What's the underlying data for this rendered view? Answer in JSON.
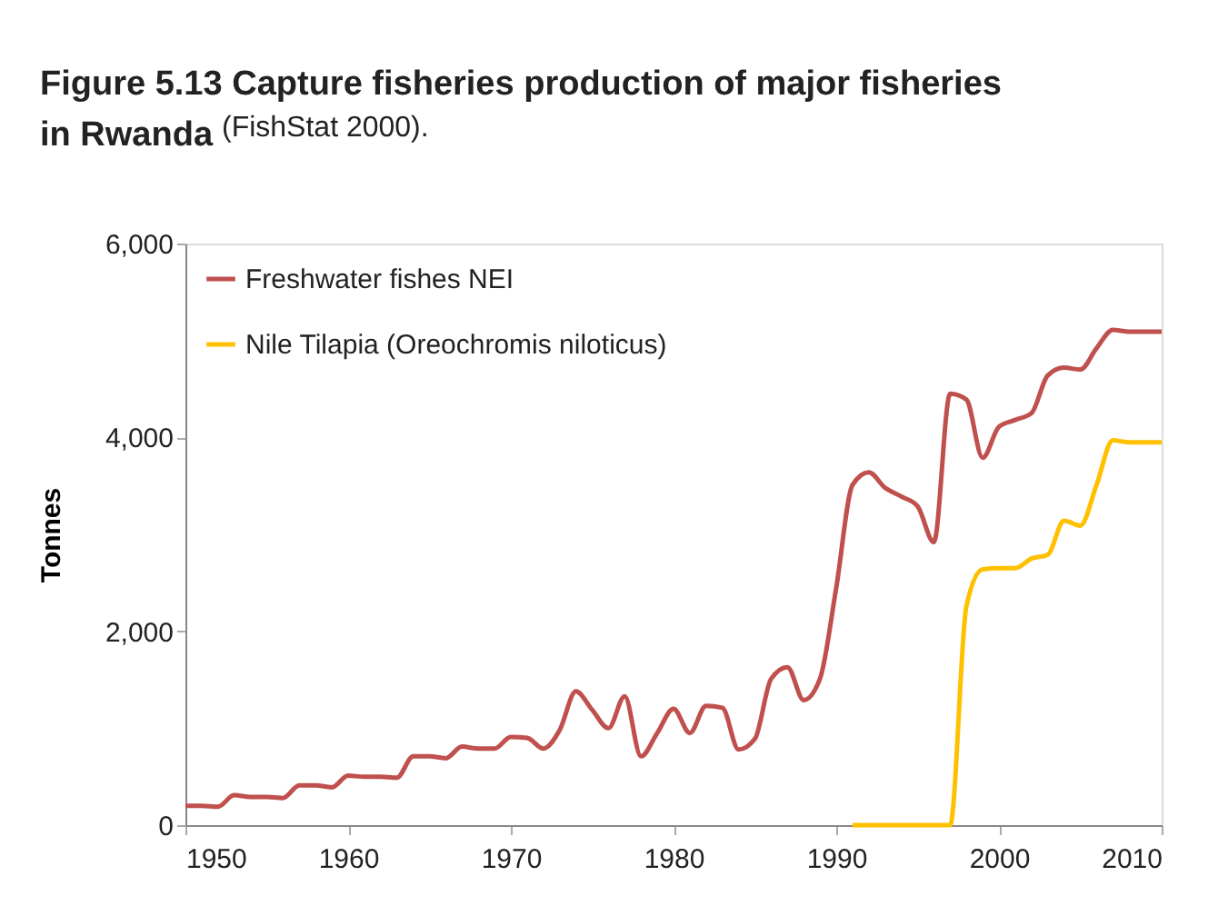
{
  "chart_data": {
    "type": "line",
    "title": "Figure 5.13 Capture fisheries production of major fisheries in Rwanda",
    "annotations": [
      "(FishStat 2000)."
    ],
    "ylabel": "Tonnes",
    "x": [
      1950,
      1951,
      1952,
      1953,
      1954,
      1955,
      1956,
      1957,
      1958,
      1959,
      1960,
      1961,
      1962,
      1963,
      1964,
      1965,
      1966,
      1967,
      1968,
      1969,
      1970,
      1971,
      1972,
      1973,
      1974,
      1975,
      1976,
      1977,
      1978,
      1979,
      1980,
      1981,
      1982,
      1983,
      1984,
      1985,
      1986,
      1987,
      1988,
      1989,
      1990,
      1991,
      1992,
      1993,
      1994,
      1995,
      1996,
      1997,
      1998,
      1999,
      2000,
      2001,
      2002,
      2003,
      2004,
      2005,
      2006,
      2007,
      2008,
      2009,
      2010
    ],
    "series": [
      {
        "name": "Freshwater fishes NEI",
        "color": "#c0504d",
        "values": [
          200,
          200,
          190,
          310,
          290,
          290,
          280,
          410,
          410,
          390,
          510,
          500,
          500,
          490,
          710,
          710,
          690,
          810,
          790,
          790,
          910,
          900,
          790,
          980,
          1380,
          1190,
          1000,
          1330,
          710,
          950,
          1200,
          950,
          1230,
          1210,
          780,
          890,
          1510,
          1630,
          1290,
          1510,
          2450,
          3510,
          3640,
          3480,
          3390,
          3290,
          2920,
          4450,
          4390,
          3790,
          4110,
          4180,
          4250,
          4640,
          4720,
          4700,
          4920,
          5110,
          5090,
          5090,
          5090
        ]
      },
      {
        "name": "Nile Tilapia (Oreochromis niloticus)",
        "color": "#ffc000",
        "x": [
          1991,
          1992,
          1993,
          1994,
          1995,
          1996,
          1997,
          1998,
          1999,
          2000,
          2001,
          2002,
          2003,
          2004,
          2005,
          2006,
          2007,
          2008,
          2009,
          2010
        ],
        "values": [
          0,
          0,
          0,
          0,
          0,
          0,
          0,
          2260,
          2640,
          2650,
          2650,
          2750,
          2790,
          3140,
          3090,
          3510,
          3970,
          3950,
          3950,
          3950
        ]
      }
    ],
    "xlim": [
      1950,
      2010
    ],
    "xticks": [
      1950,
      1960,
      1970,
      1980,
      1990,
      2000,
      2010
    ],
    "ylim": [
      0,
      6000
    ],
    "yticks": [
      {
        "value": 0,
        "label": "0"
      },
      {
        "value": 2000,
        "label": "2,000"
      },
      {
        "value": 4000,
        "label": "4,000"
      },
      {
        "value": 6000,
        "label": "6,000"
      }
    ],
    "grid": false,
    "legend": "top left",
    "line_style": "solid",
    "marker": "none"
  }
}
